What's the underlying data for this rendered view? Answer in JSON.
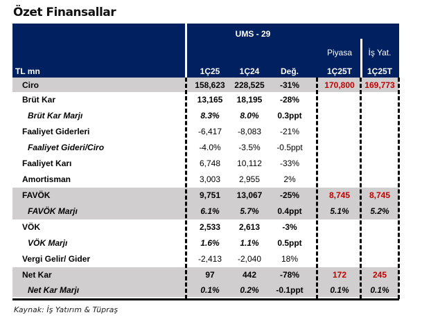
{
  "title": "Özet Finansallar",
  "header": {
    "unit": "TL mn",
    "group": "UMS - 29",
    "piyasa": "Piyasa",
    "is_yat": "İş Yat.",
    "cols": [
      "1Ç25",
      "1Ç24",
      "Değ.",
      "1Ç25T",
      "1Ç25T"
    ]
  },
  "rows": [
    {
      "label": "Ciro",
      "v": [
        "158,623",
        "228,525",
        "-31%",
        "170,800",
        "169,773"
      ]
    },
    {
      "label": "Brüt Kar",
      "v": [
        "13,165",
        "18,195",
        "-28%",
        "",
        ""
      ]
    },
    {
      "label": "Brüt Kar Marjı",
      "v": [
        "8.3%",
        "8.0%",
        "0.3ppt",
        "",
        ""
      ]
    },
    {
      "label": "Faaliyet Giderleri",
      "v": [
        "-6,417",
        "-8,083",
        "-21%",
        "",
        ""
      ]
    },
    {
      "label": "Faaliyet Gideri/Ciro",
      "v": [
        "-4.0%",
        "-3.5%",
        "-0.5ppt",
        "",
        ""
      ]
    },
    {
      "label": "Faaliyet Karı",
      "v": [
        "6,748",
        "10,112",
        "-33%",
        "",
        ""
      ]
    },
    {
      "label": "Amortisman",
      "v": [
        "3,003",
        "2,955",
        "2%",
        "",
        ""
      ]
    },
    {
      "label": "FAVÖK",
      "v": [
        "9,751",
        "13,067",
        "-25%",
        "8,745",
        "8,745"
      ]
    },
    {
      "label": "FAVÖK Marjı",
      "v": [
        "6.1%",
        "5.7%",
        "0.4ppt",
        "5.1%",
        "5.2%"
      ]
    },
    {
      "label": "VÖK",
      "v": [
        "2,533",
        "2,613",
        "-3%",
        "",
        ""
      ]
    },
    {
      "label": "VÖK Marjı",
      "v": [
        "1.6%",
        "1.1%",
        "0.5ppt",
        "",
        ""
      ]
    },
    {
      "label": "Vergi Gelir/ Gider",
      "v": [
        "-2,413",
        "-2,040",
        "18%",
        "",
        ""
      ]
    },
    {
      "label": "Net Kar",
      "v": [
        "97",
        "442",
        "-78%",
        "172",
        "245"
      ]
    },
    {
      "label": "Net Kar  Marjı",
      "v": [
        "0.1%",
        "0.2%",
        "-0.1ppt",
        "0.1%",
        "0.1%"
      ]
    }
  ],
  "source": "Kaynak: İş Yatırım & Tüpraş",
  "colors": {
    "header_bg": "#002060",
    "highlight_row": "#d0cece",
    "estimate_red": "#c00000"
  }
}
